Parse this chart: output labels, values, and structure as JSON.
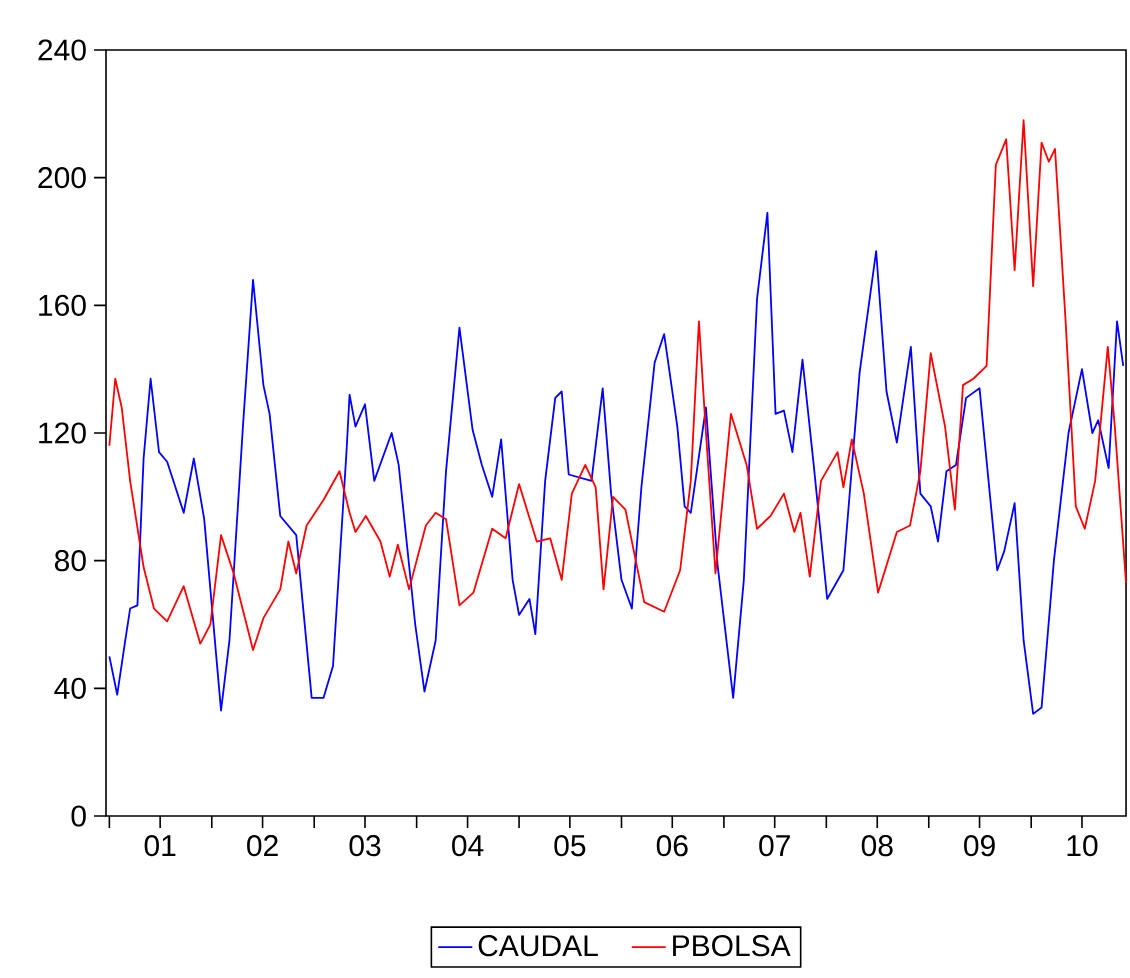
{
  "chart_data": {
    "type": "line",
    "legend": "bottom",
    "xlim": [
      "2000-12-20",
      "2010-12-05"
    ],
    "ylim": [
      0,
      240
    ],
    "yticks": [
      0,
      40,
      80,
      120,
      160,
      200,
      240
    ],
    "xticks": [
      {
        "value": "2001-01-01",
        "label": null
      },
      {
        "value": "2002-01-01",
        "label": null
      },
      {
        "value": "2003-01-01",
        "label": null
      },
      {
        "value": "2004-01-01",
        "label": null
      },
      {
        "value": "2005-01-01",
        "label": null
      },
      {
        "value": "2006-01-01",
        "label": null
      },
      {
        "value": "2007-01-01",
        "label": null
      },
      {
        "value": "2008-01-01",
        "label": null
      },
      {
        "value": "2009-01-01",
        "label": null
      },
      {
        "value": "2010-01-01",
        "label": null
      },
      {
        "value": "2001-07-01",
        "label": "01"
      },
      {
        "value": "2002-07-01",
        "label": "02"
      },
      {
        "value": "2003-07-01",
        "label": "03"
      },
      {
        "value": "2004-07-01",
        "label": "04"
      },
      {
        "value": "2005-07-01",
        "label": "05"
      },
      {
        "value": "2006-07-01",
        "label": "06"
      },
      {
        "value": "2007-07-01",
        "label": "07"
      },
      {
        "value": "2008-07-01",
        "label": "08"
      },
      {
        "value": "2009-07-01",
        "label": "09"
      },
      {
        "value": "2010-07-01",
        "label": "10"
      }
    ],
    "series": [
      {
        "name": "CAUDAL",
        "color": "#0000ff",
        "x": [
          "2001-01-01",
          "2001-01-29",
          "2001-02-25",
          "2001-03-16",
          "2001-04-11",
          "2001-05-03",
          "2001-05-28",
          "2001-06-27",
          "2001-07-26",
          "2001-09-23",
          "2001-10-29",
          "2001-12-05",
          "2002-02-03",
          "2002-03-05",
          "2002-04-22",
          "2002-05-28",
          "2002-07-04",
          "2002-07-26",
          "2002-09-02",
          "2002-10-29",
          "2002-12-23",
          "2003-02-03",
          "2003-03-09",
          "2003-04-26",
          "2003-05-07",
          "2003-05-28",
          "2003-07-01",
          "2003-08-03",
          "2003-10-04",
          "2003-10-29",
          "2003-12-27",
          "2004-01-29",
          "2004-03-09",
          "2004-04-15",
          "2004-06-02",
          "2004-07-19",
          "2004-08-21",
          "2004-09-27",
          "2004-10-29",
          "2004-12-09",
          "2005-01-01",
          "2005-02-07",
          "2005-02-28",
          "2005-04-04",
          "2005-05-10",
          "2005-06-02",
          "2005-06-27",
          "2005-09-16",
          "2005-10-26",
          "2005-11-25",
          "2006-01-01",
          "2006-02-07",
          "2006-03-13",
          "2006-04-29",
          "2006-06-02",
          "2006-07-19",
          "2006-08-14",
          "2006-09-05",
          "2006-10-29",
          "2006-12-09",
          "2007-02-03",
          "2007-03-13",
          "2007-04-29",
          "2007-06-05",
          "2007-07-04",
          "2007-08-03",
          "2007-09-02",
          "2007-10-08",
          "2007-11-17",
          "2008-01-04",
          "2008-03-02",
          "2008-04-29",
          "2008-06-27",
          "2008-08-03",
          "2008-09-09",
          "2008-10-29",
          "2008-12-02",
          "2009-01-08",
          "2009-02-03",
          "2009-03-05",
          "2009-04-08",
          "2009-05-14",
          "2009-07-01",
          "2009-09-02",
          "2009-09-27",
          "2009-11-03",
          "2009-12-05",
          "2010-01-08",
          "2010-02-07",
          "2010-03-23",
          "2010-05-14",
          "2010-07-01",
          "2010-08-07",
          "2010-08-28",
          "2010-10-04",
          "2010-11-03",
          "2010-11-25"
        ],
        "values": [
          50,
          38,
          54,
          65,
          66,
          112,
          137,
          114,
          111,
          95,
          112,
          93,
          33,
          55,
          122,
          168,
          135,
          126,
          94,
          88,
          37,
          37,
          47,
          114,
          132,
          122,
          129,
          105,
          120,
          110,
          60,
          39,
          55,
          108,
          153,
          121,
          110,
          100,
          118,
          74,
          63,
          68,
          57,
          105,
          131,
          133,
          107,
          105,
          134,
          101,
          74,
          65,
          103,
          142,
          151,
          122,
          97,
          95,
          128,
          79,
          37,
          74,
          162,
          189,
          126,
          127,
          114,
          143,
          110,
          68,
          77,
          139,
          177,
          133,
          117,
          147,
          101,
          97,
          86,
          108,
          110,
          131,
          134,
          77,
          83,
          98,
          55,
          32,
          34,
          80,
          120,
          140,
          120,
          124,
          109,
          155,
          141
        ]
      },
      {
        "name": "PBOLSA",
        "color": "#ff0000",
        "x": [
          "2001-01-01",
          "2001-01-22",
          "2001-02-14",
          "2001-03-16",
          "2001-05-03",
          "2001-06-09",
          "2001-07-26",
          "2001-09-23",
          "2001-11-21",
          "2001-12-27",
          "2002-02-03",
          "2002-03-20",
          "2002-05-28",
          "2002-07-04",
          "2002-09-02",
          "2002-10-01",
          "2002-10-29",
          "2002-12-05",
          "2003-02-03",
          "2003-04-01",
          "2003-05-07",
          "2003-05-28",
          "2003-07-04",
          "2003-08-25",
          "2003-09-27",
          "2003-10-26",
          "2003-12-05",
          "2004-02-03",
          "2004-03-09",
          "2004-04-15",
          "2004-06-02",
          "2004-07-22",
          "2004-09-27",
          "2004-11-14",
          "2005-01-01",
          "2005-03-05",
          "2005-04-22",
          "2005-06-02",
          "2005-07-08",
          "2005-08-25",
          "2005-10-01",
          "2005-10-29",
          "2005-12-02",
          "2006-01-15",
          "2006-03-23",
          "2006-06-02",
          "2006-07-29",
          "2006-09-05",
          "2006-10-04",
          "2006-10-26",
          "2006-12-02",
          "2007-01-26",
          "2007-03-23",
          "2007-04-29",
          "2007-06-16",
          "2007-08-03",
          "2007-09-09",
          "2007-10-01",
          "2007-11-03",
          "2007-12-13",
          "2008-02-10",
          "2008-03-02",
          "2008-04-01",
          "2008-05-14",
          "2008-07-04",
          "2008-09-09",
          "2008-10-26",
          "2008-12-02",
          "2009-01-08",
          "2009-02-28",
          "2009-04-04",
          "2009-05-03",
          "2009-06-09",
          "2009-07-26",
          "2009-08-28",
          "2009-10-04",
          "2009-11-03",
          "2009-12-05",
          "2010-01-08",
          "2010-02-07",
          "2010-03-05",
          "2010-03-27",
          "2010-05-03",
          "2010-06-09",
          "2010-07-11",
          "2010-08-17",
          "2010-10-01",
          "2010-10-26",
          "2010-12-05"
        ],
        "values": [
          116,
          137,
          128,
          105,
          78,
          65,
          61,
          72,
          54,
          60,
          88,
          76,
          52,
          62,
          71,
          86,
          76,
          91,
          99,
          108,
          95,
          89,
          94,
          86,
          75,
          85,
          71,
          91,
          95,
          93,
          66,
          70,
          90,
          87,
          104,
          86,
          87,
          74,
          101,
          110,
          103,
          71,
          100,
          96,
          67,
          64,
          77,
          105,
          155,
          124,
          76,
          126,
          110,
          90,
          94,
          101,
          89,
          95,
          75,
          105,
          114,
          103,
          118,
          101,
          70,
          89,
          91,
          108,
          145,
          122,
          96,
          135,
          137,
          141,
          204,
          212,
          171,
          218,
          166,
          211,
          205,
          209,
          156,
          97,
          90,
          105,
          147,
          122,
          73
        ]
      }
    ]
  }
}
